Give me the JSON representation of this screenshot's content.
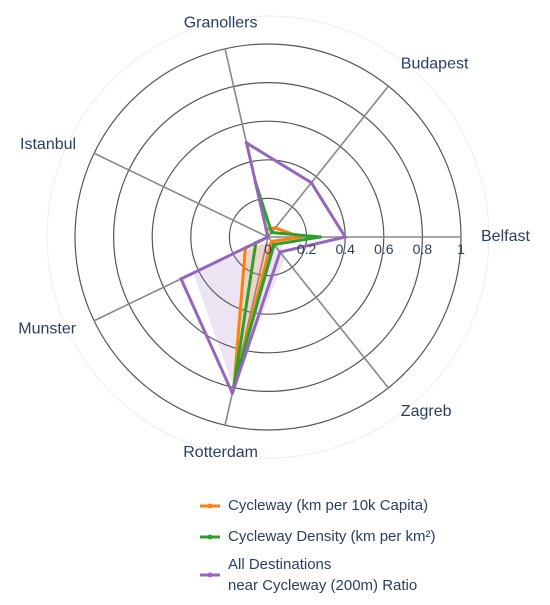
{
  "chart_data": {
    "type": "radar",
    "categories": [
      "Belfast",
      "Budapest",
      "Granollers",
      "Istanbul",
      "Munster",
      "Rotterdam",
      "Zagreb"
    ],
    "radial_ticks": [
      "0",
      "0.2",
      "0.4",
      "0.6",
      "0.8",
      "1"
    ],
    "radial_range": [
      0,
      1
    ],
    "radial_tick_values": [
      0,
      0.2,
      0.4,
      0.6,
      0.8,
      1
    ],
    "legend_position": "bottom",
    "series": [
      {
        "name": "Cycleway (km per 10k Capita)",
        "color": "#ff7f0e",
        "values": [
          0.17,
          0.06,
          0.04,
          0.0,
          0.13,
          0.79,
          0.03
        ]
      },
      {
        "name": "Cycleway Density (km per km²)",
        "color": "#2ca02c",
        "values": [
          0.27,
          0.03,
          0.29,
          0.0,
          0.07,
          0.79,
          0.05
        ]
      },
      {
        "name": "All Destinations near Cycleway (200m) Ratio",
        "name_lines": [
          "All Destinations",
          "near Cycleway (200m) Ratio"
        ],
        "color": "#9467bd",
        "values": [
          0.4,
          0.36,
          0.5,
          0.0,
          0.5,
          0.83,
          0.1
        ]
      }
    ]
  }
}
